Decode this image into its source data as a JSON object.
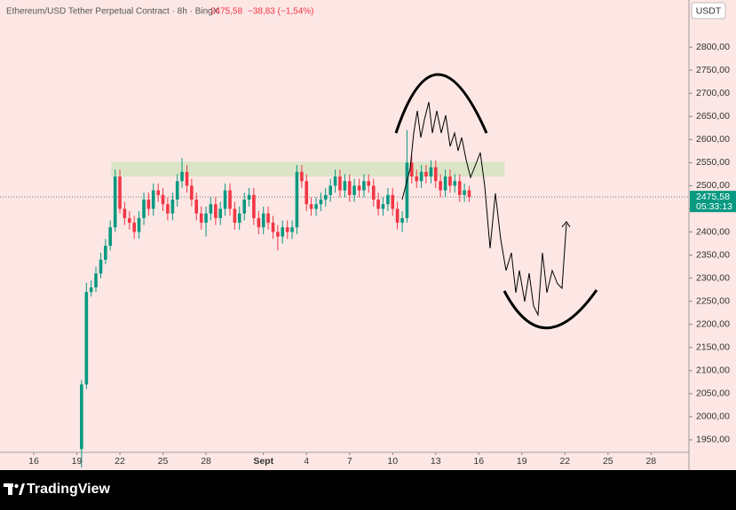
{
  "chart_data": {
    "type": "candlestick",
    "title": "Ethereum/USD Tether Perpetual Contract · 8h · BingX",
    "last_price": {
      "value": 2475.58,
      "label": "2475,58"
    },
    "change": "−38,83 (−1,54%)",
    "countdown": "05:33:13",
    "currency": "USDT",
    "up_color": "#089981",
    "down_color": "#f23645",
    "x": [
      19.33,
      19.67,
      20,
      20.33,
      20.67,
      21,
      21.33,
      21.67,
      22,
      22.33,
      22.67,
      23,
      23.33,
      23.67,
      24,
      24.33,
      24.67,
      25,
      25.33,
      25.67,
      26,
      26.33,
      26.67,
      27,
      27.33,
      27.67,
      28,
      28.33,
      28.67,
      29,
      29.33,
      29.67,
      30,
      30.33,
      30.67,
      31,
      31.33,
      31.67,
      32,
      32.33,
      32.67,
      33,
      33.33,
      33.67,
      34,
      34.33,
      34.67,
      35,
      35.33,
      35.67,
      36,
      36.33,
      36.67,
      37,
      37.33,
      37.67,
      38,
      38.33,
      38.67,
      39,
      39.33,
      39.67,
      40,
      40.33,
      40.67,
      41,
      41.33,
      41.67,
      42,
      42.33,
      42.67,
      43,
      43.33,
      43.67,
      44,
      44.33,
      44.67,
      45,
      45.33,
      45.67,
      46,
      46.33
    ],
    "open": [
      1930,
      2070,
      2270,
      2280,
      2310,
      2340,
      2370,
      2410,
      2520,
      2450,
      2430,
      2420,
      2400,
      2430,
      2470,
      2450,
      2490,
      2480,
      2460,
      2440,
      2470,
      2510,
      2530,
      2500,
      2470,
      2440,
      2420,
      2440,
      2460,
      2430,
      2450,
      2490,
      2450,
      2420,
      2440,
      2470,
      2480,
      2430,
      2410,
      2440,
      2420,
      2400,
      2390,
      2410,
      2400,
      2410,
      2530,
      2510,
      2460,
      2450,
      2460,
      2470,
      2480,
      2500,
      2520,
      2490,
      2510,
      2480,
      2500,
      2490,
      2510,
      2500,
      2470,
      2450,
      2460,
      2480,
      2450,
      2420,
      2430,
      2550,
      2520,
      2510,
      2530,
      2520,
      2540,
      2510,
      2490,
      2520,
      2500,
      2510,
      2480,
      2490
    ],
    "high": [
      2080,
      2290,
      2295,
      2325,
      2355,
      2385,
      2425,
      2535,
      2535,
      2465,
      2445,
      2435,
      2445,
      2485,
      2485,
      2505,
      2505,
      2495,
      2475,
      2485,
      2525,
      2560,
      2545,
      2515,
      2485,
      2455,
      2455,
      2475,
      2475,
      2465,
      2505,
      2505,
      2465,
      2455,
      2485,
      2495,
      2495,
      2445,
      2455,
      2455,
      2435,
      2415,
      2425,
      2425,
      2425,
      2545,
      2545,
      2525,
      2475,
      2475,
      2485,
      2495,
      2515,
      2535,
      2535,
      2525,
      2525,
      2515,
      2515,
      2525,
      2525,
      2515,
      2485,
      2475,
      2495,
      2495,
      2465,
      2445,
      2620,
      2565,
      2535,
      2545,
      2545,
      2555,
      2555,
      2525,
      2535,
      2535,
      2525,
      2525,
      2505,
      2500
    ],
    "low": [
      1890,
      2060,
      2260,
      2270,
      2300,
      2330,
      2360,
      2400,
      2440,
      2415,
      2405,
      2385,
      2385,
      2415,
      2435,
      2435,
      2465,
      2445,
      2425,
      2425,
      2455,
      2495,
      2485,
      2455,
      2425,
      2405,
      2390,
      2425,
      2415,
      2415,
      2435,
      2435,
      2405,
      2405,
      2425,
      2455,
      2415,
      2395,
      2395,
      2405,
      2385,
      2360,
      2375,
      2385,
      2385,
      2395,
      2495,
      2445,
      2435,
      2435,
      2445,
      2455,
      2465,
      2485,
      2475,
      2475,
      2465,
      2465,
      2475,
      2475,
      2485,
      2455,
      2435,
      2435,
      2445,
      2435,
      2405,
      2400,
      2420,
      2505,
      2495,
      2495,
      2505,
      2505,
      2495,
      2475,
      2475,
      2485,
      2485,
      2465,
      2465,
      2465
    ],
    "close": [
      2070,
      2270,
      2280,
      2310,
      2340,
      2370,
      2410,
      2520,
      2450,
      2430,
      2420,
      2400,
      2430,
      2470,
      2450,
      2490,
      2480,
      2460,
      2440,
      2470,
      2510,
      2530,
      2500,
      2470,
      2440,
      2420,
      2440,
      2460,
      2430,
      2450,
      2490,
      2450,
      2420,
      2440,
      2470,
      2480,
      2430,
      2410,
      2440,
      2420,
      2400,
      2390,
      2410,
      2400,
      2410,
      2530,
      2510,
      2460,
      2450,
      2460,
      2470,
      2480,
      2500,
      2520,
      2490,
      2510,
      2480,
      2500,
      2490,
      2510,
      2500,
      2470,
      2450,
      2460,
      2480,
      2450,
      2420,
      2430,
      2550,
      2520,
      2510,
      2530,
      2520,
      2540,
      2510,
      2490,
      2520,
      2500,
      2510,
      2480,
      2490,
      2475.58
    ],
    "zone": {
      "x": [
        21.4,
        48.8
      ],
      "y": [
        2520,
        2552
      ],
      "color": "#d8e3c3"
    },
    "xlim": [
      13.65,
      61.64
    ],
    "xticks": [
      16,
      19,
      22,
      25,
      28,
      {
        "value": 32,
        "label": "Sept"
      },
      {
        "value": 35,
        "label": "4"
      },
      {
        "value": 38,
        "label": "7"
      },
      {
        "value": 41,
        "label": "10"
      },
      {
        "value": 44,
        "label": "13"
      },
      {
        "value": 47,
        "label": "16"
      },
      {
        "value": 50,
        "label": "19"
      },
      {
        "value": 53,
        "label": "22"
      },
      {
        "value": 56,
        "label": "25"
      },
      {
        "value": 59,
        "label": "28"
      }
    ],
    "ylim": [
      1923,
      2902
    ],
    "yticks": [
      {
        "value": 1950,
        "label": "1950,00"
      },
      {
        "value": 2000,
        "label": "2000,00"
      },
      {
        "value": 2050,
        "label": "2050,00"
      },
      {
        "value": 2100,
        "label": "2100,00"
      },
      {
        "value": 2150,
        "label": "2150,00"
      },
      {
        "value": 2200,
        "label": "2200,00"
      },
      {
        "value": 2250,
        "label": "2250,00"
      },
      {
        "value": 2300,
        "label": "2300,00"
      },
      {
        "value": 2350,
        "label": "2350,00"
      },
      {
        "value": 2400,
        "label": "2400,00"
      },
      {
        "value": 2450,
        "label": "2450,00"
      },
      {
        "value": 2500,
        "label": "2500,00"
      },
      {
        "value": 2550,
        "label": "2550,00"
      },
      {
        "value": 2600,
        "label": "2600,00"
      },
      {
        "value": 2650,
        "label": "2650,00"
      },
      {
        "value": 2700,
        "label": "2700,00"
      },
      {
        "value": 2750,
        "label": "2750,00"
      },
      {
        "value": 2800,
        "label": "2800,00"
      }
    ]
  },
  "footer": {
    "brand": "TradingView"
  }
}
